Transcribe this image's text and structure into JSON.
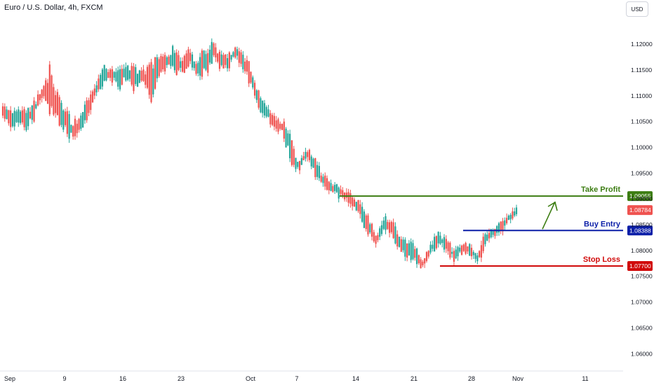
{
  "header": {
    "title": "Euro / U.S. Dollar, 4h, FXCM",
    "currency": "USD"
  },
  "colors": {
    "up": "#26a69a",
    "down": "#ef5350",
    "take_profit": "#3c7d12",
    "buy_entry": "#0c1fa8",
    "stop_loss": "#d10a0a",
    "current_price": "#ef5350"
  },
  "chart_data": {
    "type": "candlestick",
    "ylim": [
      1.058,
      1.1245
    ],
    "yticks": [
      "1.12000",
      "1.11500",
      "1.11000",
      "1.10500",
      "1.10000",
      "1.09500",
      "1.09000",
      "1.08500",
      "1.08000",
      "1.07500",
      "1.07000",
      "1.06500",
      "1.06000"
    ],
    "xticks": [
      "Sep",
      "9",
      "16",
      "23",
      "Oct",
      "7",
      "14",
      "21",
      "28",
      "Nov",
      "11"
    ],
    "levels": [
      {
        "label": "Take Profit",
        "value": 1.09055,
        "value_text": "1.09055",
        "color_key": "take_profit",
        "from": "Oct 10"
      },
      {
        "label": "Buy Entry",
        "value": 1.08388,
        "value_text": "1.08388",
        "color_key": "buy_entry",
        "from": "Oct 27"
      },
      {
        "label": "Stop Loss",
        "value": 1.077,
        "value_text": "1.07700",
        "color_key": "stop_loss",
        "from": "Oct 23"
      }
    ],
    "current_price": {
      "value": 1.08784,
      "value_text": "1.08784"
    },
    "path": [
      [
        1.1055,
        1.1085
      ],
      [
        1.1065,
        1.1045
      ],
      [
        1.1072,
        1.105
      ],
      [
        1.1068,
        1.104
      ],
      [
        1.108,
        1.106
      ],
      [
        1.111,
        1.1105
      ],
      [
        1.115,
        1.1075
      ],
      [
        1.11,
        1.1055
      ],
      [
        1.1078,
        1.1035
      ],
      [
        1.1045,
        1.1015
      ],
      [
        1.106,
        1.103
      ],
      [
        1.109,
        1.1065
      ],
      [
        1.111,
        1.112
      ],
      [
        1.113,
        1.115
      ],
      [
        1.1145,
        1.1135
      ],
      [
        1.112,
        1.115
      ],
      [
        1.116,
        1.113
      ],
      [
        1.115,
        1.1115
      ],
      [
        1.1145,
        1.1125
      ],
      [
        1.116,
        1.1095
      ],
      [
        1.1175,
        1.114
      ],
      [
        1.118,
        1.1155
      ],
      [
        1.114,
        1.12
      ],
      [
        1.1165,
        1.115
      ],
      [
        1.1185,
        1.1165
      ],
      [
        1.1135,
        1.1165
      ],
      [
        1.114,
        1.119
      ],
      [
        1.117,
        1.1205
      ],
      [
        1.1185,
        1.1155
      ],
      [
        1.1175,
        1.116
      ],
      [
        1.1185,
        1.119
      ],
      [
        1.1175,
        1.115
      ],
      [
        1.115,
        1.112
      ],
      [
        1.11,
        1.107
      ],
      [
        1.1075,
        1.106
      ],
      [
        1.1055,
        1.104
      ],
      [
        1.1045,
        1.1035
      ],
      [
        1.102,
        1.097
      ],
      [
        1.096,
        1.0965
      ],
      [
        1.099,
        1.099
      ],
      [
        1.0978,
        1.0955
      ],
      [
        1.094,
        1.0935
      ],
      [
        1.093,
        1.092
      ],
      [
        1.091,
        1.0925
      ],
      [
        1.091,
        1.0905
      ],
      [
        1.0902,
        1.089
      ],
      [
        1.0885,
        1.087
      ],
      [
        1.0855,
        1.0835
      ],
      [
        1.0825,
        1.0815
      ],
      [
        1.084,
        1.086
      ],
      [
        1.0855,
        1.0835
      ],
      [
        1.0825,
        1.0805
      ],
      [
        1.0815,
        1.0795
      ],
      [
        1.08,
        1.0785
      ],
      [
        1.0775,
        1.077
      ],
      [
        1.08,
        1.0805
      ],
      [
        1.0815,
        1.0835
      ],
      [
        1.082,
        1.08
      ],
      [
        1.0785,
        1.0795
      ],
      [
        1.081,
        1.08
      ],
      [
        1.081,
        1.0795
      ],
      [
        1.078,
        1.079
      ],
      [
        1.0815,
        1.083
      ],
      [
        1.0835,
        1.0835
      ],
      [
        1.085,
        1.0845
      ],
      [
        1.086,
        1.0865
      ],
      [
        1.0875,
        1.0875
      ]
    ]
  }
}
